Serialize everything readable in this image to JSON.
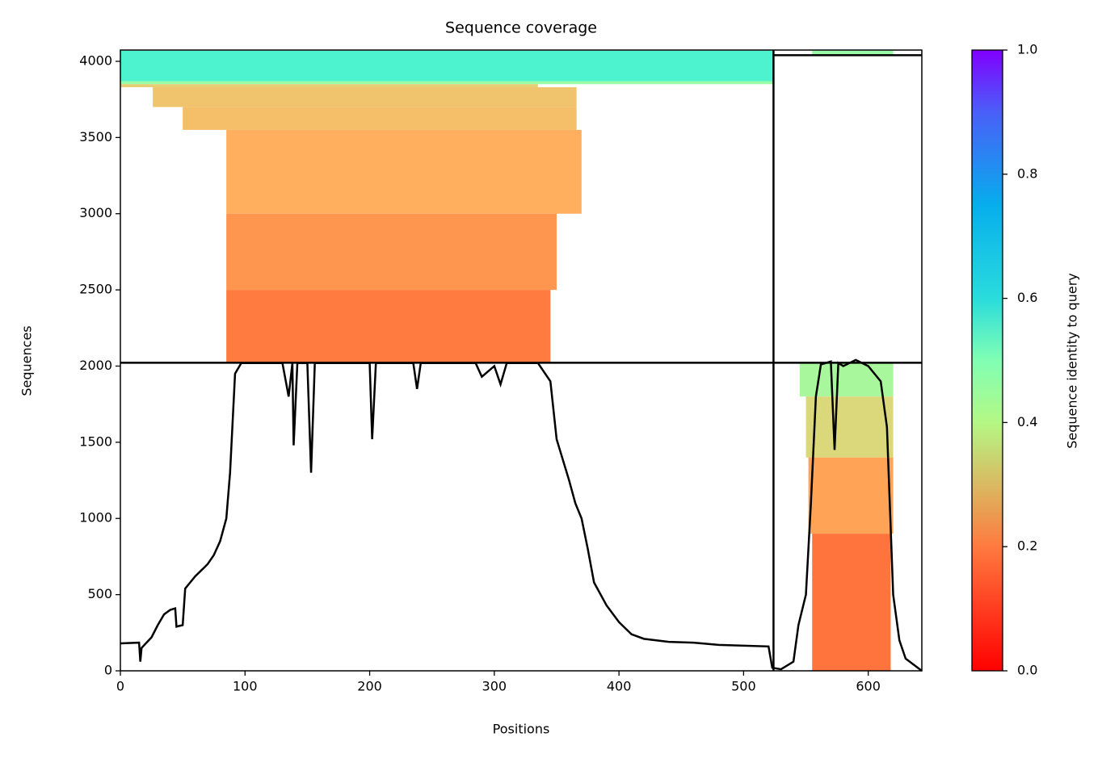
{
  "chart_data": {
    "type": "coverage",
    "title": "Sequence coverage",
    "xlabel": "Positions",
    "ylabel": "Sequences",
    "xlim": [
      0,
      643
    ],
    "ylim": [
      0,
      4074
    ],
    "xticks": [
      0,
      100,
      200,
      300,
      400,
      500,
      600
    ],
    "yticks": [
      0,
      500,
      1000,
      1500,
      2000,
      2500,
      3000,
      3500,
      4000
    ],
    "segment_breaks": {
      "x": [
        524
      ],
      "y": [
        2022,
        4040
      ]
    },
    "blocks": [
      {
        "start": 0,
        "end": 524,
        "row_start": 3870,
        "row_end": 4070,
        "identity": 0.6
      },
      {
        "start": 0,
        "end": 524,
        "row_start": 3850,
        "row_end": 3870,
        "identity": 0.45
      },
      {
        "start": 0,
        "end": 335,
        "row_start": 3830,
        "row_end": 3850,
        "identity": 0.3
      },
      {
        "start": 26,
        "end": 366,
        "row_start": 3700,
        "row_end": 3830,
        "identity": 0.28
      },
      {
        "start": 50,
        "end": 366,
        "row_start": 3550,
        "row_end": 3700,
        "identity": 0.27
      },
      {
        "start": 85,
        "end": 370,
        "row_start": 3000,
        "row_end": 3550,
        "identity": 0.24
      },
      {
        "start": 85,
        "end": 350,
        "row_start": 2500,
        "row_end": 3000,
        "identity": 0.2
      },
      {
        "start": 85,
        "end": 345,
        "row_start": 2022,
        "row_end": 2500,
        "identity": 0.16
      },
      {
        "start": 555,
        "end": 620,
        "row_start": 4040,
        "row_end": 4070,
        "identity": 0.45
      },
      {
        "start": 545,
        "end": 620,
        "row_start": 1800,
        "row_end": 2022,
        "identity": 0.42
      },
      {
        "start": 550,
        "end": 620,
        "row_start": 1400,
        "row_end": 1800,
        "identity": 0.32
      },
      {
        "start": 552,
        "end": 620,
        "row_start": 900,
        "row_end": 1400,
        "identity": 0.22
      },
      {
        "start": 555,
        "end": 618,
        "row_start": 0,
        "row_end": 900,
        "identity": 0.15
      }
    ],
    "coverage": {
      "color": "#000000",
      "x": [
        0,
        15,
        16,
        17,
        25,
        30,
        35,
        40,
        44,
        45,
        50,
        52,
        60,
        70,
        75,
        80,
        85,
        88,
        92,
        97,
        130,
        135,
        138,
        139,
        142,
        150,
        153,
        156,
        165,
        200,
        202,
        205,
        235,
        238,
        241,
        285,
        290,
        300,
        305,
        310,
        335,
        345,
        350,
        360,
        365,
        370,
        375,
        380,
        390,
        400,
        410,
        420,
        440,
        460,
        480,
        520,
        523,
        530,
        540,
        544,
        550,
        554,
        558,
        562,
        570,
        573,
        576,
        580,
        590,
        600,
        610,
        615,
        620,
        625,
        630,
        643
      ],
      "y": [
        180,
        185,
        60,
        150,
        220,
        300,
        370,
        400,
        410,
        290,
        300,
        540,
        620,
        700,
        760,
        850,
        1000,
        1300,
        1950,
        2020,
        2020,
        1800,
        2020,
        1480,
        2020,
        2020,
        1300,
        2020,
        2020,
        2020,
        1520,
        2020,
        2020,
        1850,
        2020,
        2020,
        1930,
        2000,
        1880,
        2020,
        2020,
        1900,
        1520,
        1250,
        1100,
        1000,
        800,
        580,
        430,
        320,
        240,
        210,
        190,
        185,
        170,
        160,
        20,
        10,
        60,
        300,
        500,
        1100,
        1800,
        2010,
        2030,
        1450,
        2020,
        2000,
        2040,
        2000,
        1900,
        1600,
        500,
        200,
        80,
        0
      ]
    },
    "colorbar": {
      "label": "Sequence identity to query",
      "colormap": "rainbow_r",
      "lim": [
        0,
        1
      ],
      "ticks": [
        {
          "value": 0,
          "label": "0.0"
        },
        {
          "value": 0.2,
          "label": "0.2"
        },
        {
          "value": 0.4,
          "label": "0.4"
        },
        {
          "value": 0.6,
          "label": "0.6"
        },
        {
          "value": 0.8,
          "label": "0.8"
        },
        {
          "value": 1,
          "label": "1.0"
        }
      ]
    }
  }
}
